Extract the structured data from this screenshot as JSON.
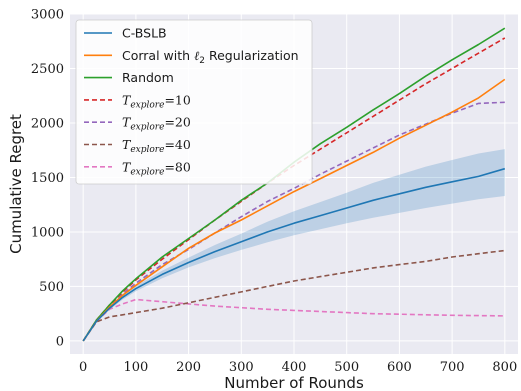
{
  "chart_data": {
    "type": "line",
    "title": "",
    "xlabel": "Number of Rounds",
    "ylabel": "Cumulative Regret",
    "xlim": [
      -25,
      825
    ],
    "ylim": [
      -120,
      3000
    ],
    "xticks": [
      0,
      100,
      200,
      300,
      400,
      500,
      600,
      700,
      800
    ],
    "yticks": [
      0,
      500,
      1000,
      1500,
      2000,
      2500,
      3000
    ],
    "grid": true,
    "legend_position": "top-left",
    "x": [
      0,
      25,
      50,
      75,
      100,
      150,
      200,
      250,
      300,
      350,
      400,
      450,
      500,
      550,
      600,
      650,
      700,
      750,
      800
    ],
    "series": [
      {
        "name": "C-BSLB",
        "color": "#1f77b4",
        "style": "solid",
        "values": [
          0,
          180,
          300,
          400,
          480,
          610,
          720,
          820,
          910,
          1000,
          1080,
          1150,
          1220,
          1290,
          1350,
          1410,
          1460,
          1510,
          1580
        ],
        "band_lower": [
          0,
          170,
          285,
          380,
          455,
          575,
          675,
          760,
          835,
          905,
          970,
          1025,
          1080,
          1130,
          1175,
          1220,
          1260,
          1300,
          1330
        ],
        "band_upper": [
          0,
          190,
          315,
          420,
          505,
          645,
          765,
          880,
          985,
          1095,
          1190,
          1275,
          1360,
          1450,
          1525,
          1600,
          1660,
          1720,
          1760
        ]
      },
      {
        "name": "Corral with ℓ2 Regularization",
        "color": "#ff7f0e",
        "style": "solid",
        "values": [
          0,
          180,
          310,
          420,
          510,
          680,
          850,
          990,
          1110,
          1240,
          1370,
          1490,
          1610,
          1730,
          1860,
          1980,
          2100,
          2230,
          2400
        ]
      },
      {
        "name": "Random",
        "color": "#2ca02c",
        "style": "solid",
        "values": [
          0,
          190,
          330,
          460,
          570,
          770,
          940,
          1110,
          1290,
          1450,
          1640,
          1810,
          1960,
          2120,
          2270,
          2430,
          2580,
          2720,
          2870
        ]
      },
      {
        "name": "T_explore=10",
        "color": "#d62728",
        "style": "dashed",
        "values": [
          0,
          190,
          330,
          450,
          560,
          750,
          930,
          1110,
          1280,
          1450,
          1610,
          1760,
          1910,
          2060,
          2210,
          2360,
          2500,
          2640,
          2780
        ]
      },
      {
        "name": "T_explore=20",
        "color": "#9467bd",
        "style": "dashed",
        "values": [
          0,
          185,
          320,
          430,
          530,
          700,
          840,
          990,
          1140,
          1280,
          1400,
          1530,
          1650,
          1770,
          1890,
          1990,
          2090,
          2180,
          2190
        ]
      },
      {
        "name": "T_explore=40",
        "color": "#8c564b",
        "style": "dashed",
        "values": [
          0,
          175,
          220,
          240,
          260,
          300,
          350,
          400,
          450,
          500,
          550,
          590,
          630,
          670,
          700,
          730,
          770,
          800,
          830
        ]
      },
      {
        "name": "T_explore=80",
        "color": "#e377c2",
        "style": "dashed",
        "values": [
          0,
          180,
          290,
          340,
          380,
          360,
          340,
          320,
          305,
          290,
          280,
          270,
          260,
          250,
          245,
          240,
          235,
          232,
          230
        ]
      }
    ]
  },
  "legend": {
    "labels": [
      {
        "kind": "text",
        "text": "C-BSLB"
      },
      {
        "kind": "text",
        "text": "Corral with ",
        "math": "ℓ",
        "sub": "2",
        "after": " Regularization"
      },
      {
        "kind": "text",
        "text": "Random"
      },
      {
        "kind": "math",
        "main": "T",
        "sub": "explore",
        "after": "=10"
      },
      {
        "kind": "math",
        "main": "T",
        "sub": "explore",
        "after": "=20"
      },
      {
        "kind": "math",
        "main": "T",
        "sub": "explore",
        "after": "=40"
      },
      {
        "kind": "math",
        "main": "T",
        "sub": "explore",
        "after": "=80"
      }
    ]
  }
}
